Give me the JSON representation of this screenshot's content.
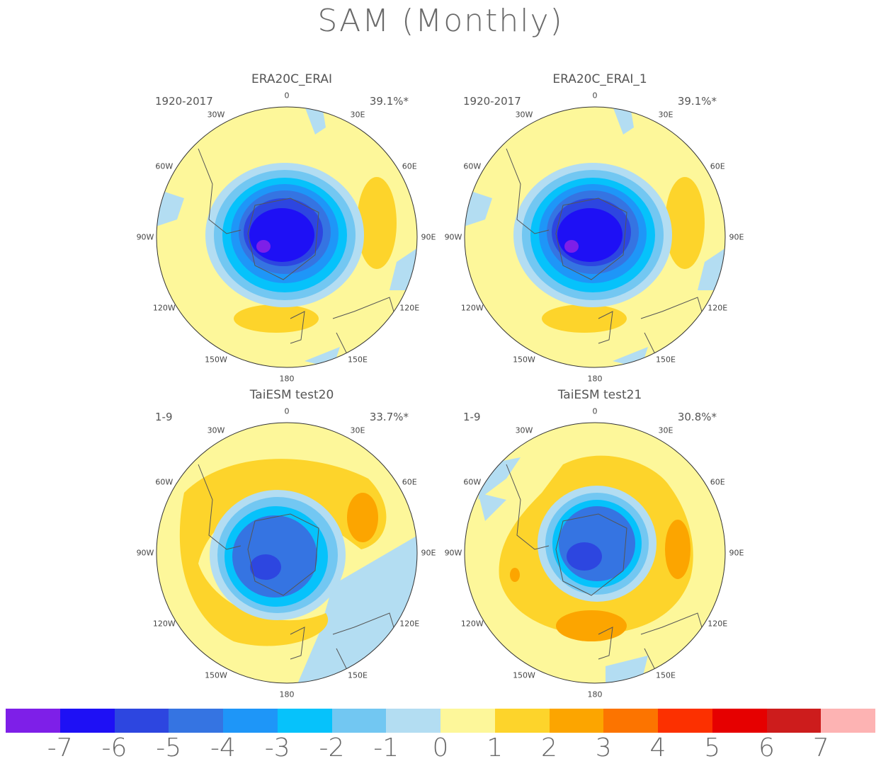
{
  "title": "SAM (Monthly)",
  "panels": [
    {
      "title": "ERA20C_ERAI",
      "period": "1920-2017",
      "pct": "39.1%*"
    },
    {
      "title": "ERA20C_ERAI_1",
      "period": "1920-2017",
      "pct": "39.1%*"
    },
    {
      "title": "TaiESM test20",
      "period": "1-9",
      "pct": "33.7%*"
    },
    {
      "title": "TaiESM test21",
      "period": "1-9",
      "pct": "30.8%*"
    }
  ],
  "lon_labels": [
    "0",
    "30E",
    "60E",
    "90E",
    "120E",
    "150E",
    "180",
    "150W",
    "120W",
    "90W",
    "60W",
    "30W"
  ],
  "colorbar": {
    "colors": [
      "#7e1fe8",
      "#1e10f5",
      "#2d46e0",
      "#3574e2",
      "#1e96f8",
      "#06c2fb",
      "#72c7f2",
      "#b3ddf2",
      "#fdf79a",
      "#fdd42b",
      "#fca500",
      "#fc7400",
      "#fc3000",
      "#e60000",
      "#cd1c1c",
      "#fdb3b3"
    ],
    "labels": [
      "-7",
      "-6",
      "-5",
      "-4",
      "-3",
      "-2",
      "-1",
      "0",
      "1",
      "2",
      "3",
      "4",
      "5",
      "6",
      "7"
    ]
  },
  "colors": {
    "ocean_land": "#fdf79a",
    "coast": "#555555"
  }
}
